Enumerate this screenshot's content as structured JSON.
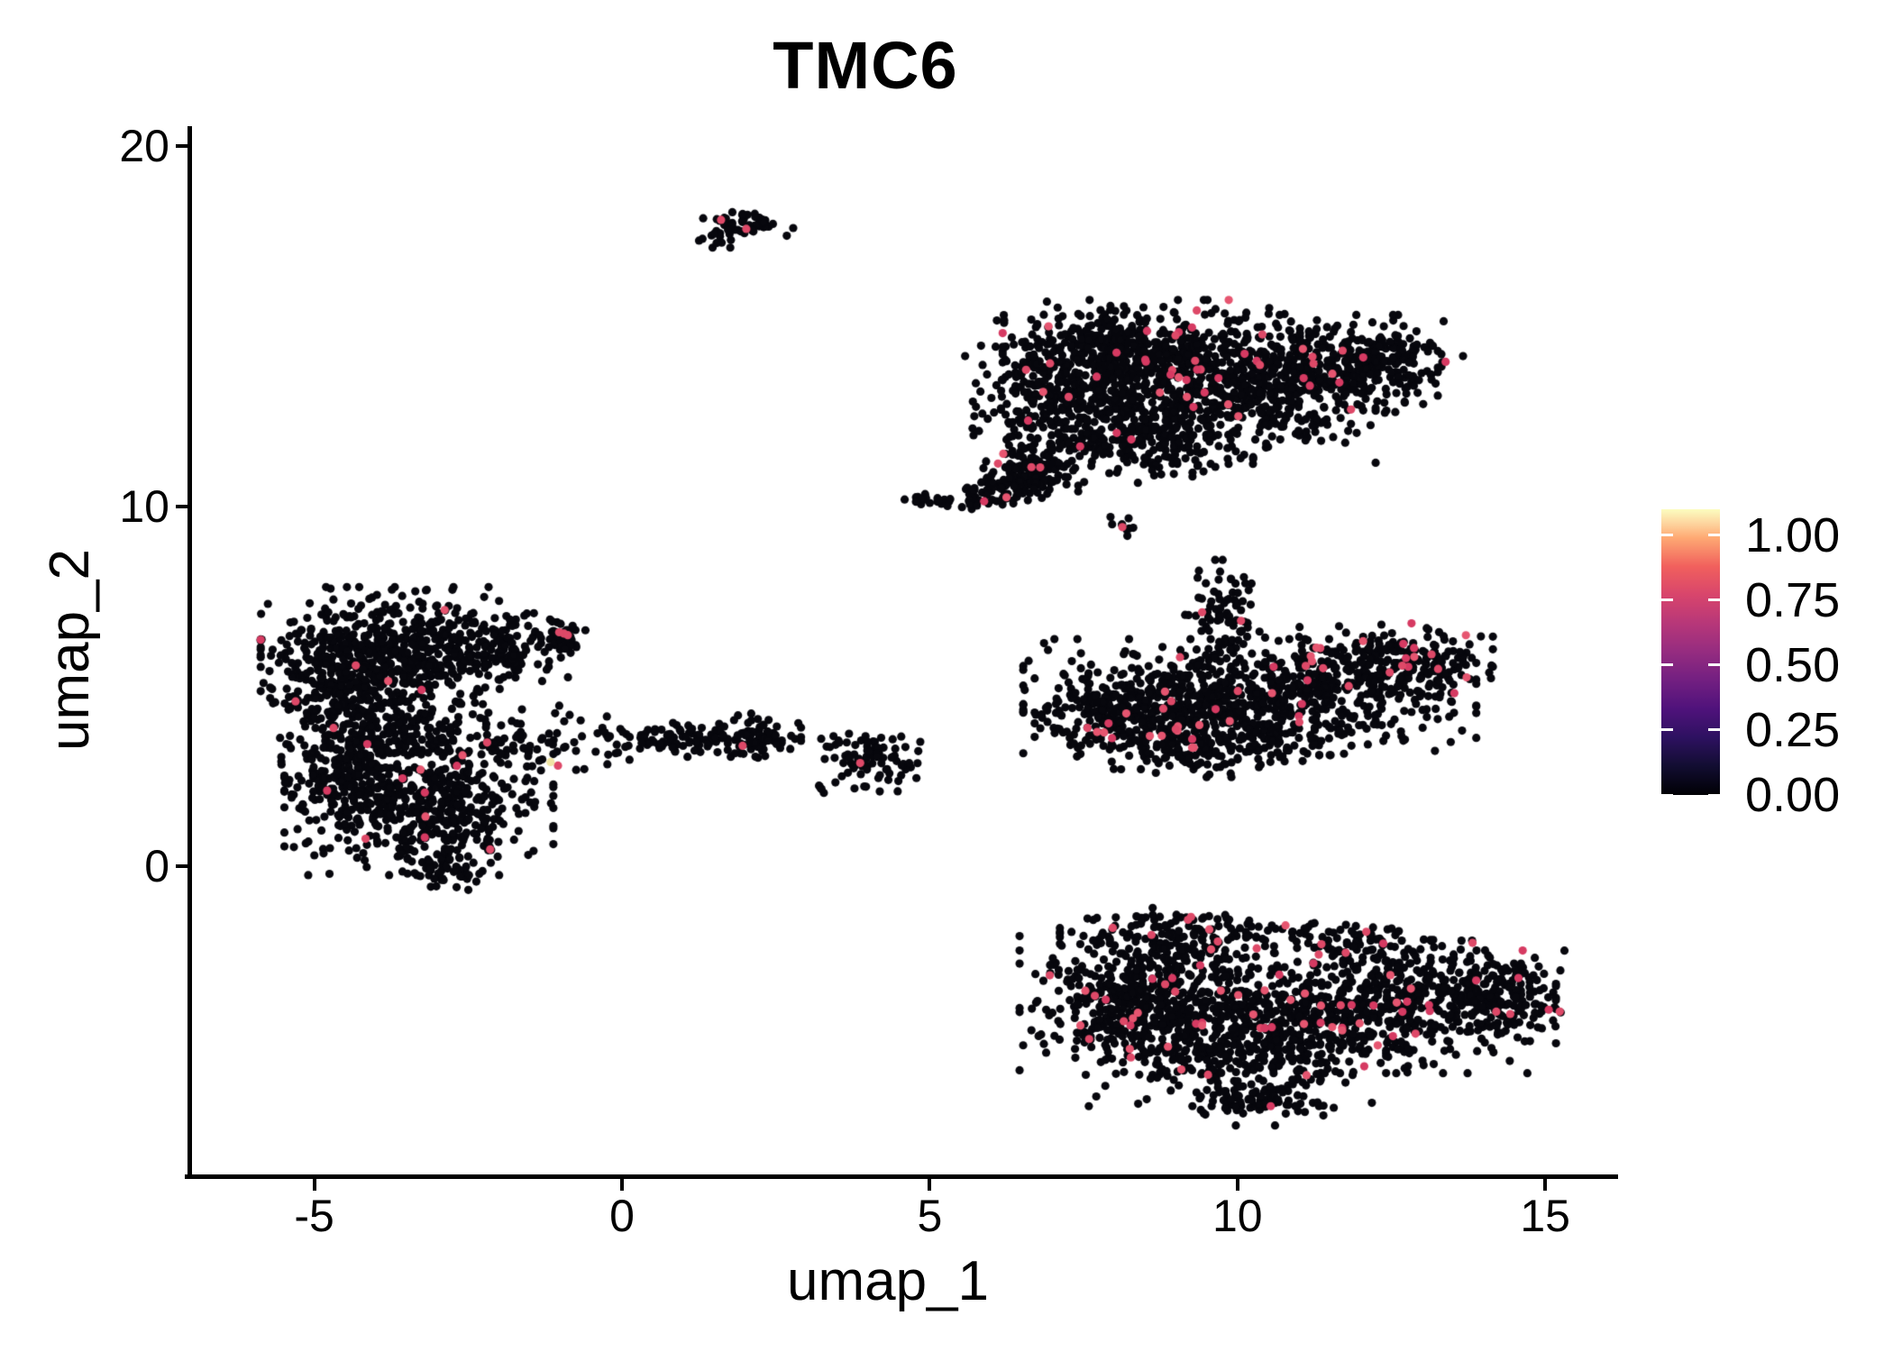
{
  "chart_data": {
    "type": "scatter",
    "title": "TMC6",
    "xlabel": "umap_1",
    "ylabel": "umap_2",
    "xlim": [
      -7.03,
      16.14
    ],
    "ylim": [
      -8.6,
      20.5
    ],
    "grid": false,
    "x_ticks": [
      {
        "value": -5,
        "label": "-5"
      },
      {
        "value": 0,
        "label": "0"
      },
      {
        "value": 5,
        "label": "5"
      },
      {
        "value": 10,
        "label": "10"
      },
      {
        "value": 15,
        "label": "15"
      }
    ],
    "y_ticks": [
      {
        "value": 0,
        "label": "0"
      },
      {
        "value": 10,
        "label": "10"
      },
      {
        "value": 20,
        "label": "20"
      }
    ],
    "legend": {
      "position": "right",
      "colormap": "magma",
      "vmax_display": 1.1,
      "ticks": [
        {
          "value": 0.0,
          "label": "0.00"
        },
        {
          "value": 0.25,
          "label": "0.25"
        },
        {
          "value": 0.5,
          "label": "0.50"
        },
        {
          "value": 0.75,
          "label": "0.75"
        },
        {
          "value": 1.0,
          "label": "1.00"
        }
      ],
      "gradient_stops": [
        {
          "p": 0.0,
          "c": "#000004"
        },
        {
          "p": 0.1,
          "c": "#120d31"
        },
        {
          "p": 0.2,
          "c": "#2d1160"
        },
        {
          "p": 0.3,
          "c": "#4f127b"
        },
        {
          "p": 0.4,
          "c": "#721f81"
        },
        {
          "p": 0.5,
          "c": "#952c80"
        },
        {
          "p": 0.6,
          "c": "#b73779"
        },
        {
          "p": 0.7,
          "c": "#d8456c"
        },
        {
          "p": 0.8,
          "c": "#f1605d"
        },
        {
          "p": 0.9,
          "c": "#fea973"
        },
        {
          "p": 0.95,
          "c": "#fdd49e"
        },
        {
          "p": 1.0,
          "c": "#fcfdbf"
        }
      ]
    },
    "point_radius_px": 4.6,
    "point_generation": "gaussian_mixture",
    "seed": 1337,
    "colors": {
      "base": "#07070d",
      "accent": "#de4968",
      "accent_variants": [
        "#de4968",
        "#d63a62",
        "#e65570"
      ],
      "high": "#f0e5a5"
    },
    "clusters": [
      {
        "name": "top-small",
        "pink_rate": 0,
        "blobs": [
          {
            "cx": 2.0,
            "cy": 17.85,
            "sx": 0.34,
            "sy": 0.2,
            "n": 52
          },
          {
            "cx": 1.62,
            "cy": 17.5,
            "sx": 0.16,
            "sy": 0.14,
            "n": 12
          }
        ],
        "accents": [
          {
            "x": 1.61,
            "y": 17.95,
            "c": "accent"
          },
          {
            "x": 2.02,
            "y": 17.7,
            "c": "accent"
          }
        ]
      },
      {
        "name": "top-right-large",
        "pink_rate": 0.022,
        "blobs": [
          {
            "cx": 8.6,
            "cy": 14.3,
            "sx": 1.05,
            "sy": 0.62,
            "n": 480
          },
          {
            "cx": 7.3,
            "cy": 13.2,
            "sx": 0.75,
            "sy": 0.85,
            "n": 340
          },
          {
            "cx": 9.6,
            "cy": 12.9,
            "sx": 1.15,
            "sy": 0.75,
            "n": 430
          },
          {
            "cx": 11.3,
            "cy": 13.7,
            "sx": 0.85,
            "sy": 0.7,
            "n": 330
          },
          {
            "cx": 12.5,
            "cy": 14.1,
            "sx": 0.55,
            "sy": 0.45,
            "n": 110
          },
          {
            "cx": 8.3,
            "cy": 11.8,
            "sx": 0.85,
            "sy": 0.5,
            "n": 200
          },
          {
            "cx": 6.75,
            "cy": 10.95,
            "sx": 0.33,
            "sy": 0.38,
            "n": 120,
            "pink": 0.03
          },
          {
            "cx": 5.3,
            "cy": 10.15,
            "sx": 0.42,
            "sy": 0.1,
            "n": 38
          },
          {
            "cx": 6.05,
            "cy": 10.55,
            "sx": 0.28,
            "sy": 0.22,
            "n": 40
          }
        ],
        "accents": []
      },
      {
        "name": "tiny-mid",
        "pink_rate": 0,
        "blobs": [
          {
            "cx": 8.15,
            "cy": 9.4,
            "sx": 0.12,
            "sy": 0.16,
            "n": 9
          }
        ],
        "accents": [
          {
            "x": 8.13,
            "y": 9.42,
            "c": "accent"
          }
        ]
      },
      {
        "name": "mid-right",
        "pink_rate": 0.028,
        "blobs": [
          {
            "cx": 10.2,
            "cy": 4.7,
            "sx": 1.6,
            "sy": 0.7,
            "n": 680
          },
          {
            "cx": 8.2,
            "cy": 4.2,
            "sx": 0.65,
            "sy": 0.5,
            "n": 190
          },
          {
            "cx": 13.0,
            "cy": 5.65,
            "sx": 0.5,
            "sy": 0.42,
            "n": 120,
            "pink": 0.07
          },
          {
            "cx": 9.75,
            "cy": 6.9,
            "sx": 0.32,
            "sy": 0.7,
            "n": 85
          },
          {
            "cx": 9.3,
            "cy": 3.4,
            "sx": 0.85,
            "sy": 0.4,
            "n": 210
          },
          {
            "cx": 11.8,
            "cy": 5.6,
            "sx": 0.8,
            "sy": 0.5,
            "n": 140,
            "pink": 0.05
          }
        ],
        "accents": []
      },
      {
        "name": "left-large",
        "pink_rate": 0.009,
        "blobs": [
          {
            "cx": -3.8,
            "cy": 5.8,
            "sx": 0.9,
            "sy": 0.85,
            "n": 560
          },
          {
            "cx": -4.75,
            "cy": 5.1,
            "sx": 0.42,
            "sy": 0.75,
            "n": 150
          },
          {
            "cx": -2.1,
            "cy": 6.0,
            "sx": 0.55,
            "sy": 0.45,
            "n": 140
          },
          {
            "cx": -1.1,
            "cy": 6.35,
            "sx": 0.22,
            "sy": 0.22,
            "n": 45
          },
          {
            "cx": -3.3,
            "cy": 1.6,
            "sx": 0.95,
            "sy": 0.8,
            "n": 560
          },
          {
            "cx": -4.5,
            "cy": 2.4,
            "sx": 0.45,
            "sy": 0.55,
            "n": 140
          },
          {
            "cx": -3.6,
            "cy": 3.7,
            "sx": 0.85,
            "sy": 0.5,
            "n": 190
          },
          {
            "cx": -1.3,
            "cy": 3.6,
            "sx": 0.7,
            "sy": 0.4,
            "n": 55
          },
          {
            "cx": -2.9,
            "cy": -0.05,
            "sx": 0.38,
            "sy": 0.28,
            "n": 55
          }
        ],
        "accents": [
          {
            "x": -1.16,
            "y": 2.9,
            "c": "high"
          },
          {
            "x": -1.04,
            "y": 2.8,
            "c": "accent"
          },
          {
            "x": -1.02,
            "y": 6.5,
            "c": "accent"
          },
          {
            "x": -0.88,
            "y": 6.42,
            "c": "accent"
          }
        ]
      },
      {
        "name": "center-small",
        "pink_rate": 0,
        "blobs": [
          {
            "cx": 1.1,
            "cy": 3.55,
            "sx": 0.65,
            "sy": 0.22,
            "n": 85
          },
          {
            "cx": 2.15,
            "cy": 3.6,
            "sx": 0.33,
            "sy": 0.28,
            "n": 75
          },
          {
            "cx": 4.0,
            "cy": 3.0,
            "sx": 0.38,
            "sy": 0.42,
            "n": 85
          },
          {
            "cx": 3.25,
            "cy": 2.2,
            "sx": 0.09,
            "sy": 0.08,
            "n": 4
          },
          {
            "cx": -0.15,
            "cy": 3.3,
            "sx": 0.45,
            "sy": 0.18,
            "n": 12
          }
        ],
        "accents": [
          {
            "x": 1.96,
            "y": 3.35,
            "c": "accent"
          },
          {
            "x": 3.87,
            "y": 2.87,
            "c": "accent"
          }
        ]
      },
      {
        "name": "bottom-right",
        "pink_rate": 0.03,
        "blobs": [
          {
            "cx": 8.3,
            "cy": -3.6,
            "sx": 0.8,
            "sy": 0.95,
            "n": 470
          },
          {
            "cx": 10.0,
            "cy": -4.7,
            "sx": 1.05,
            "sy": 0.85,
            "n": 520
          },
          {
            "cx": 12.3,
            "cy": -3.9,
            "sx": 1.25,
            "sy": 0.8,
            "n": 520,
            "pink": 0.05
          },
          {
            "cx": 14.2,
            "cy": -3.6,
            "sx": 0.55,
            "sy": 0.55,
            "n": 170,
            "pink": 0.065
          },
          {
            "cx": 9.3,
            "cy": -2.0,
            "sx": 0.95,
            "sy": 0.38,
            "n": 140
          },
          {
            "cx": 12.0,
            "cy": -2.35,
            "sx": 0.95,
            "sy": 0.38,
            "n": 120,
            "pink": 0.05
          },
          {
            "cx": 10.3,
            "cy": -6.5,
            "sx": 0.55,
            "sy": 0.3,
            "n": 75
          }
        ],
        "accents": []
      }
    ]
  }
}
